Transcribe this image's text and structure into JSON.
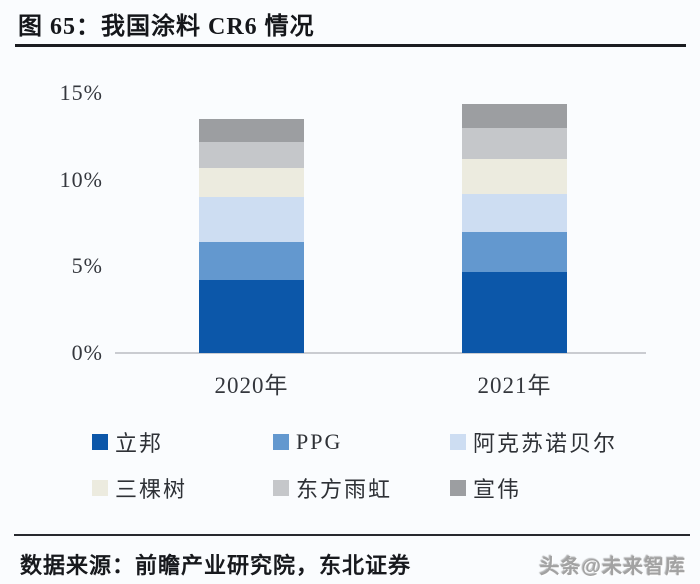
{
  "figure": {
    "title": "图 65：我国涂料 CR6 情况"
  },
  "chart_data": {
    "type": "bar",
    "stacked": true,
    "title": "我国涂料CR6情况",
    "categories": [
      "2020年",
      "2021年"
    ],
    "series": [
      {
        "name": "立邦",
        "color": "#0c57a9",
        "values": [
          4.2,
          4.7
        ]
      },
      {
        "name": "PPG",
        "color": "#6398cf",
        "values": [
          2.2,
          2.3
        ]
      },
      {
        "name": "阿克苏诺贝尔",
        "color": "#cdddf2",
        "values": [
          2.6,
          2.2
        ]
      },
      {
        "name": "三棵树",
        "color": "#ecebdf",
        "values": [
          1.7,
          2.0
        ]
      },
      {
        "name": "东方雨虹",
        "color": "#c5c7ca",
        "values": [
          1.5,
          1.8
        ]
      },
      {
        "name": "宣伟",
        "color": "#9c9ea1",
        "values": [
          1.3,
          1.4
        ]
      }
    ],
    "totals": [
      13.5,
      14.4
    ],
    "ylabel": "",
    "xlabel": "",
    "ylim": [
      0,
      15
    ],
    "yticks": [
      {
        "label": "0%",
        "value": 0
      },
      {
        "label": "5%",
        "value": 5
      },
      {
        "label": "10%",
        "value": 10
      },
      {
        "label": "15%",
        "value": 15
      }
    ],
    "grid": false,
    "legend_position": "bottom"
  },
  "footer": {
    "source": "数据来源：前瞻产业研究院，东北证券",
    "watermark": "头条@未来智库"
  }
}
